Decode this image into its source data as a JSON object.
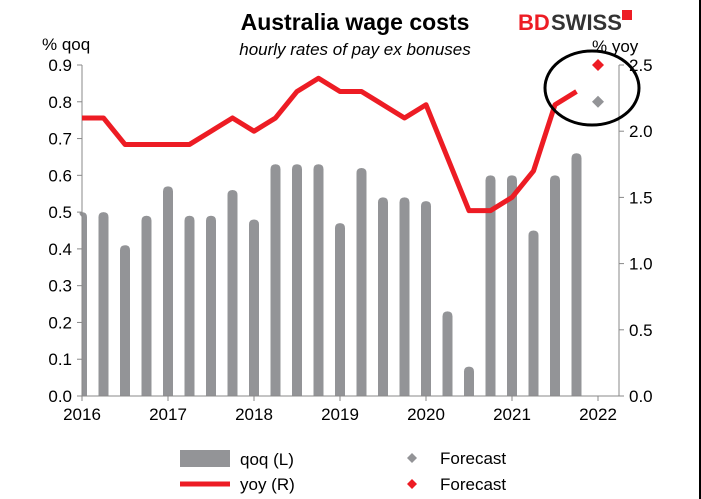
{
  "chart_data": {
    "type": "bar+line",
    "title": "Australia wage costs",
    "subtitle": "hourly rates of pay ex bonuses",
    "ylabel_left": "% qoq",
    "ylabel_right": "% yoy",
    "ylim_left": [
      0,
      0.9
    ],
    "ylim_right": [
      0,
      2.5
    ],
    "yticks_left": [
      "0.0",
      "0.1",
      "0.2",
      "0.3",
      "0.4",
      "0.5",
      "0.6",
      "0.7",
      "0.8",
      "0.9"
    ],
    "yticks_right": [
      "0.0",
      "0.5",
      "1.0",
      "1.5",
      "2.0",
      "2.5"
    ],
    "xticks": [
      "2016",
      "2017",
      "2018",
      "2019",
      "2020",
      "2021",
      "2022"
    ],
    "categories": [
      "2016Q1",
      "2016Q2",
      "2016Q3",
      "2016Q4",
      "2017Q1",
      "2017Q2",
      "2017Q3",
      "2017Q4",
      "2018Q1",
      "2018Q2",
      "2018Q3",
      "2018Q4",
      "2019Q1",
      "2019Q2",
      "2019Q3",
      "2019Q4",
      "2020Q1",
      "2020Q2",
      "2020Q3",
      "2020Q4",
      "2021Q1",
      "2021Q2",
      "2021Q3",
      "2021Q4"
    ],
    "series": [
      {
        "name": "qoq (L)",
        "type": "bar",
        "axis": "left",
        "color": "#939497",
        "values": [
          0.5,
          0.5,
          0.41,
          0.49,
          0.57,
          0.49,
          0.49,
          0.56,
          0.48,
          0.63,
          0.63,
          0.63,
          0.47,
          0.62,
          0.54,
          0.54,
          0.53,
          0.23,
          0.08,
          0.6,
          0.6,
          0.45,
          0.6,
          0.66
        ]
      },
      {
        "name": "yoy (R)",
        "type": "line",
        "axis": "right",
        "color": "#ed1c24",
        "values": [
          2.1,
          2.1,
          1.9,
          1.9,
          1.9,
          1.9,
          2.0,
          2.1,
          2.0,
          2.1,
          2.3,
          2.4,
          2.3,
          2.3,
          2.2,
          2.1,
          2.2,
          1.8,
          1.4,
          1.4,
          1.5,
          1.7,
          2.2,
          2.3
        ]
      }
    ],
    "forecasts": [
      {
        "name": "Forecast",
        "period": "2022Q1",
        "axis": "left",
        "value": 0.8,
        "color": "#939497"
      },
      {
        "name": "Forecast",
        "period": "2022Q1",
        "axis": "right",
        "value": 2.5,
        "color": "#ed1c24"
      }
    ],
    "annotation": "circle around forecasts",
    "legend": "bottom",
    "grid": false
  },
  "logo": {
    "text": "BDSWISS",
    "brand_color": "#ed1c24"
  }
}
